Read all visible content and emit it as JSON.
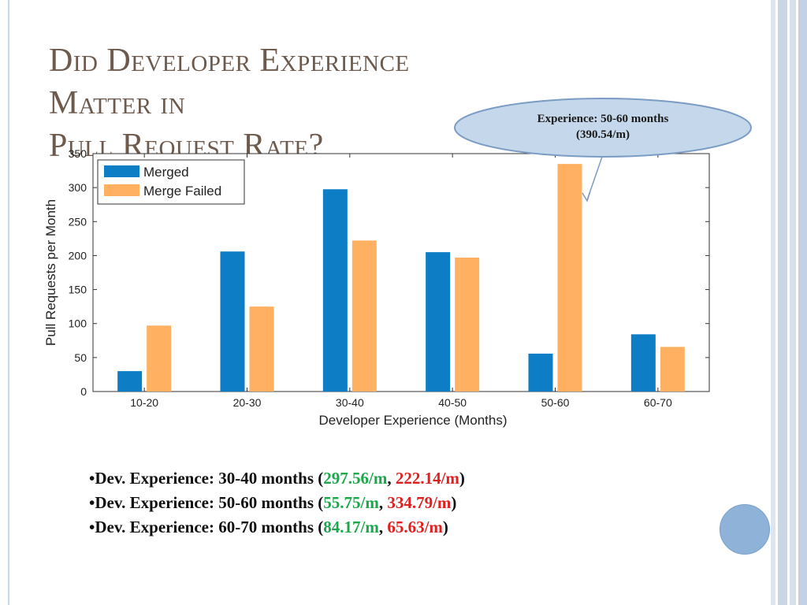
{
  "slide": {
    "title_line1": "Did Developer Experience Matter in",
    "title_line2": "Pull Request Rate?"
  },
  "callout": {
    "line1": "Experience: 50-60 months",
    "line2": "(390.54/m)"
  },
  "chart_data": {
    "type": "bar",
    "title": "",
    "xlabel": "Developer Experience (Months)",
    "ylabel": "Pull Requests per Month",
    "categories": [
      "10-20",
      "20-30",
      "30-40",
      "40-50",
      "50-60",
      "60-70"
    ],
    "ylim": [
      0,
      350
    ],
    "yticks": [
      0,
      50,
      100,
      150,
      200,
      250,
      300,
      350
    ],
    "grid": false,
    "legend_position": "top-left",
    "series": [
      {
        "name": "Merged",
        "color": "#0d7dc6",
        "values": [
          30,
          206,
          297.56,
          205,
          55.75,
          84.17
        ]
      },
      {
        "name": "Merge Failed",
        "color": "#ffb061",
        "values": [
          97,
          125,
          222.14,
          197,
          334.79,
          65.63
        ]
      }
    ]
  },
  "bullets": [
    {
      "prefix": "•Dev. Experience: 30-40 months ",
      "open": "(",
      "merged": "297.56/m",
      "sep": ", ",
      "failed": "222.14/m",
      "close": ")"
    },
    {
      "prefix": "•Dev. Experience: 50-60 months ",
      "open": "(",
      "merged": "55.75/m",
      "sep": ", ",
      "failed": "334.79/m",
      "close": ")"
    },
    {
      "prefix": "•Dev. Experience: 60-70 months ",
      "open": "(",
      "merged": "84.17/m",
      "sep": ", ",
      "failed": "65.63/m",
      "close": ")"
    }
  ],
  "colors": {
    "title": "#6d5a4c",
    "callout_fill": "#c5d7ea",
    "callout_border": "#7b9cc4",
    "merged_value_text": "#1aa84a",
    "failed_value_text": "#e11f1f",
    "accent_circle": "#8fb2d8"
  }
}
